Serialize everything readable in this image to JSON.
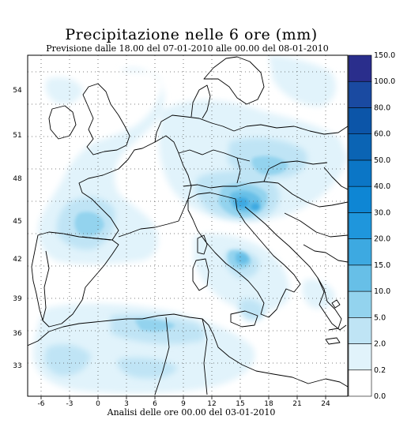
{
  "title": "Precipitazione nelle 6 ore (mm)",
  "subtitle": "Previsione dalle 18.00 del 07-01-2010 alle 00.00 del 08-01-2010",
  "footer": "Analisi delle ore 00.00 del 03-01-2010",
  "map": {
    "lon_range": [
      -11,
      25
    ],
    "lat_range": [
      30,
      57
    ],
    "lon_ticks": [
      "-6",
      "-3",
      "0",
      "3",
      "6",
      "9",
      "12",
      "15",
      "18",
      "21",
      "24"
    ],
    "lat_ticks": [
      "33",
      "36",
      "39",
      "42",
      "45",
      "48",
      "51",
      "54"
    ],
    "grid": "dotted",
    "colorbar_levels": [
      "0.0",
      "0.2",
      "2.0",
      "5.0",
      "10.0",
      "15.0",
      "20.0",
      "30.0",
      "40.0",
      "50.0",
      "60.0",
      "80.0",
      "100.0",
      "150.0"
    ],
    "colorbar_colors": [
      "#ffffff",
      "#e1f3fb",
      "#bfe4f5",
      "#93d3ee",
      "#67bfe7",
      "#3da9e1",
      "#1f96dc",
      "#0e86d4",
      "#0b76c6",
      "#0b64b4",
      "#0c55a8",
      "#1a4aa1",
      "#2a2e8c"
    ]
  }
}
